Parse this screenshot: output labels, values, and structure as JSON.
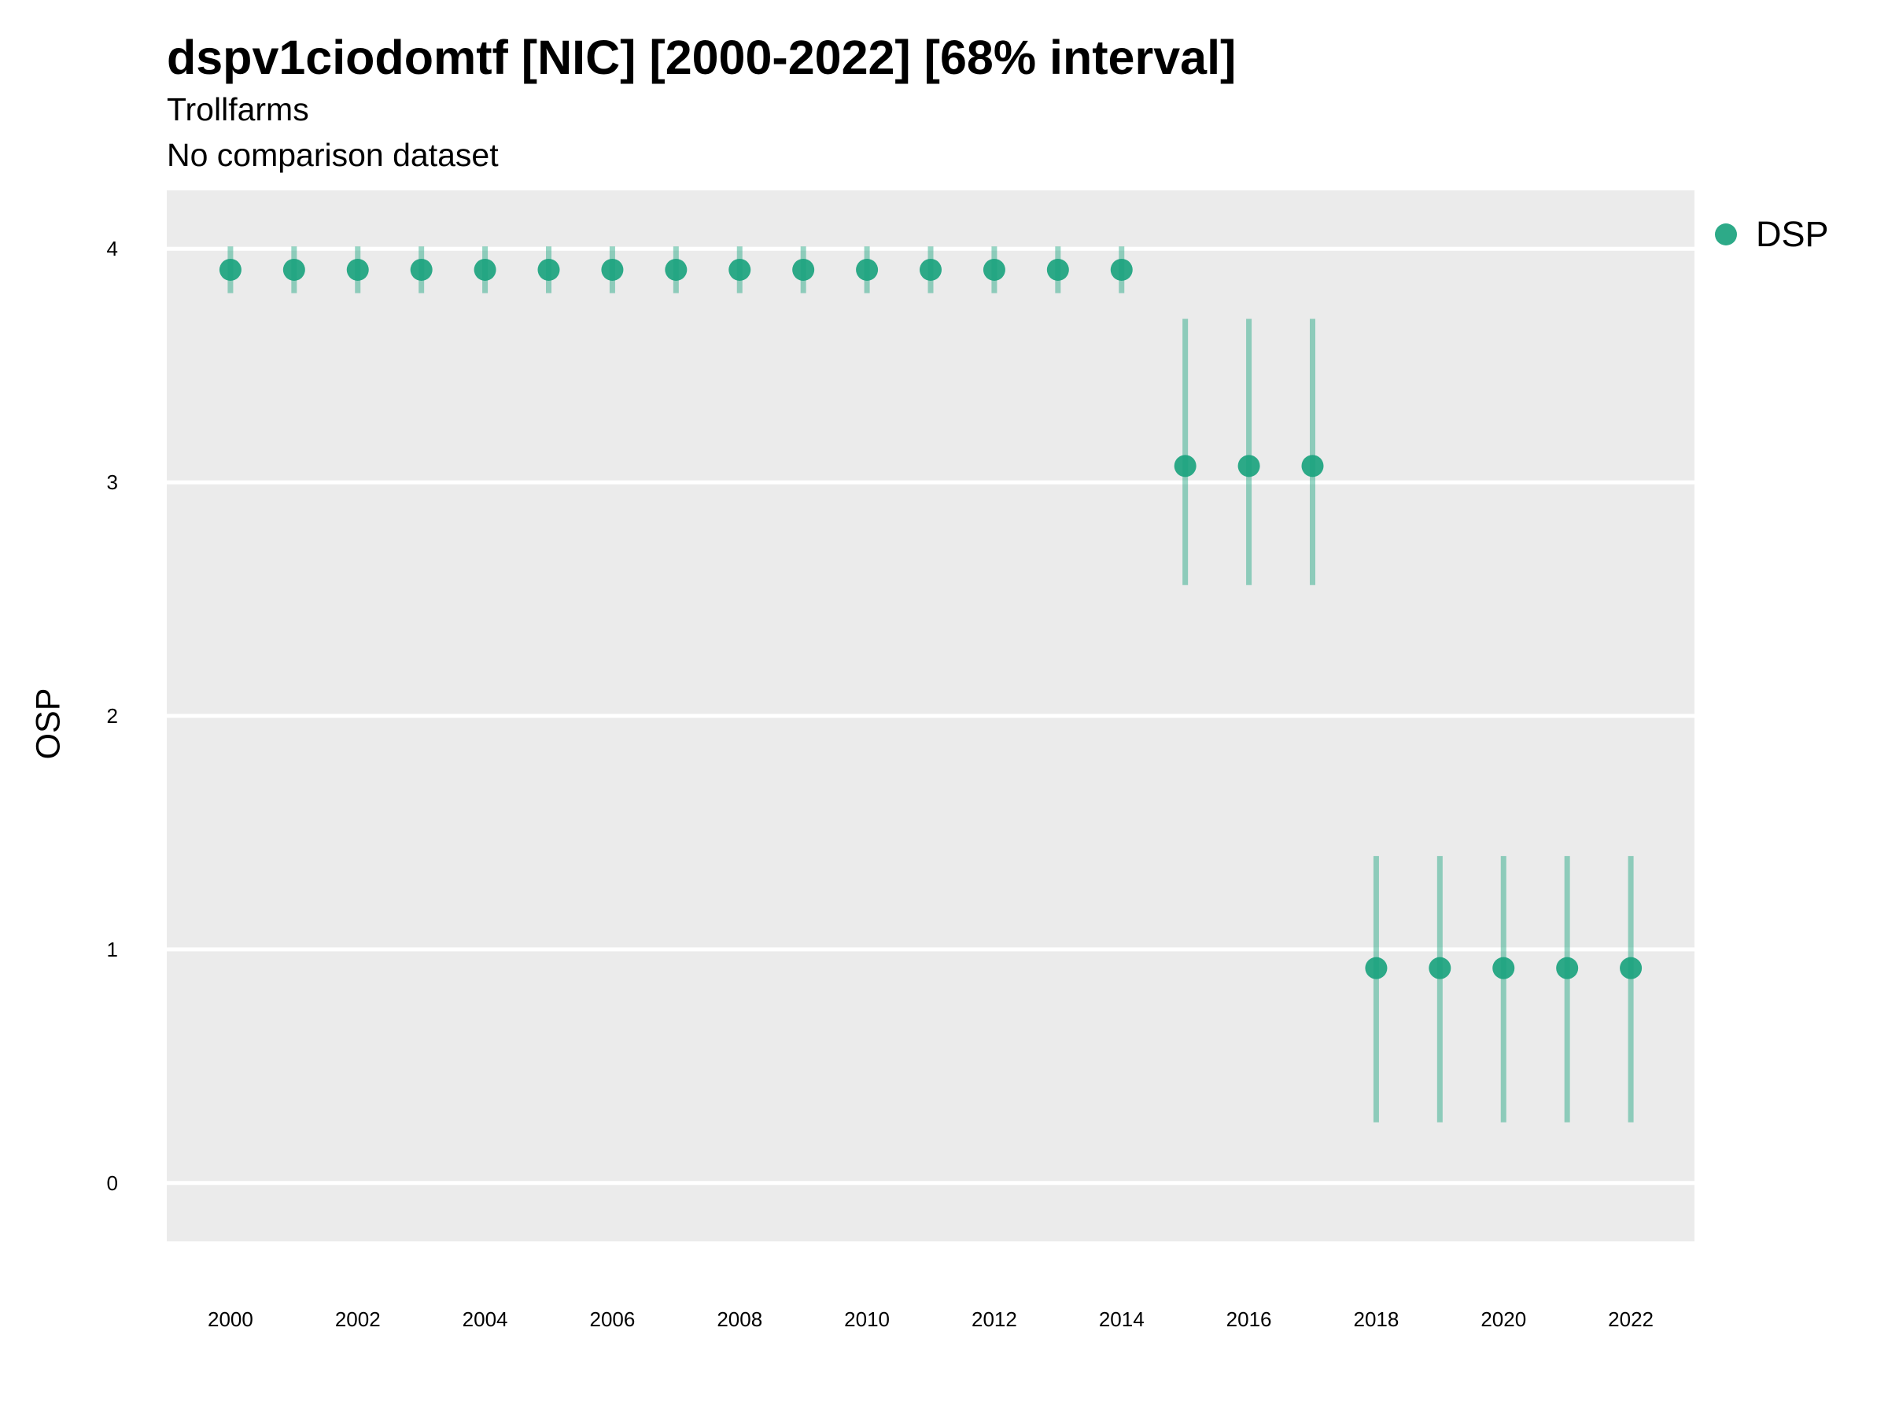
{
  "chart_data": {
    "type": "scatter",
    "title": "dspv1ciodomtf [NIC] [2000-2022] [68% interval]",
    "subtitle": "Trollfarms",
    "caption": "No comparison dataset",
    "xlabel": "",
    "ylabel": "OSP",
    "ylim": [
      -0.25,
      4.25
    ],
    "xlim": [
      1999,
      2023
    ],
    "y_ticks": [
      0,
      1,
      2,
      3,
      4
    ],
    "x_ticks": [
      2000,
      2002,
      2004,
      2006,
      2008,
      2010,
      2012,
      2014,
      2016,
      2018,
      2020,
      2022
    ],
    "grid": true,
    "legend_position": "right",
    "color": "#1ba37e",
    "series": [
      {
        "name": "DSP",
        "points": [
          {
            "x": 2000,
            "y": 3.91,
            "low": 3.81,
            "high": 4.01
          },
          {
            "x": 2001,
            "y": 3.91,
            "low": 3.81,
            "high": 4.01
          },
          {
            "x": 2002,
            "y": 3.91,
            "low": 3.81,
            "high": 4.01
          },
          {
            "x": 2003,
            "y": 3.91,
            "low": 3.81,
            "high": 4.01
          },
          {
            "x": 2004,
            "y": 3.91,
            "low": 3.81,
            "high": 4.01
          },
          {
            "x": 2005,
            "y": 3.91,
            "low": 3.81,
            "high": 4.01
          },
          {
            "x": 2006,
            "y": 3.91,
            "low": 3.81,
            "high": 4.01
          },
          {
            "x": 2007,
            "y": 3.91,
            "low": 3.81,
            "high": 4.01
          },
          {
            "x": 2008,
            "y": 3.91,
            "low": 3.81,
            "high": 4.01
          },
          {
            "x": 2009,
            "y": 3.91,
            "low": 3.81,
            "high": 4.01
          },
          {
            "x": 2010,
            "y": 3.91,
            "low": 3.81,
            "high": 4.01
          },
          {
            "x": 2011,
            "y": 3.91,
            "low": 3.81,
            "high": 4.01
          },
          {
            "x": 2012,
            "y": 3.91,
            "low": 3.81,
            "high": 4.01
          },
          {
            "x": 2013,
            "y": 3.91,
            "low": 3.81,
            "high": 4.01
          },
          {
            "x": 2014,
            "y": 3.91,
            "low": 3.81,
            "high": 4.01
          },
          {
            "x": 2015,
            "y": 3.07,
            "low": 2.56,
            "high": 3.7
          },
          {
            "x": 2016,
            "y": 3.07,
            "low": 2.56,
            "high": 3.7
          },
          {
            "x": 2017,
            "y": 3.07,
            "low": 2.56,
            "high": 3.7
          },
          {
            "x": 2018,
            "y": 0.92,
            "low": 0.26,
            "high": 1.4
          },
          {
            "x": 2019,
            "y": 0.92,
            "low": 0.26,
            "high": 1.4
          },
          {
            "x": 2020,
            "y": 0.92,
            "low": 0.26,
            "high": 1.4
          },
          {
            "x": 2021,
            "y": 0.92,
            "low": 0.26,
            "high": 1.4
          },
          {
            "x": 2022,
            "y": 0.92,
            "low": 0.26,
            "high": 1.4
          }
        ]
      }
    ]
  }
}
